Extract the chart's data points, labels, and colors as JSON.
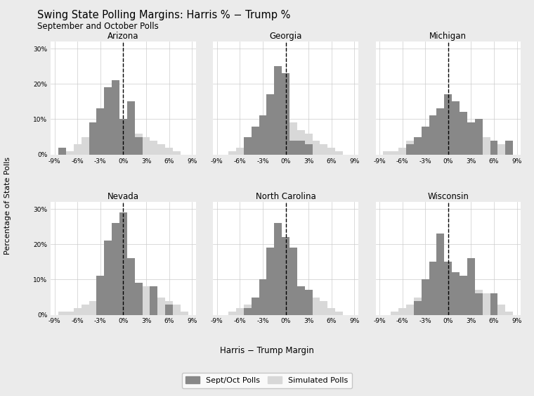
{
  "title": "Swing State Polling Margins: Harris % − Trump %",
  "subtitle": "September and October Polls",
  "xlabel": "Harris − Trump Margin",
  "ylabel": "Percentage of State Polls",
  "background_color": "#ebebeb",
  "plot_bg_color": "#ffffff",
  "dark_color": "#888888",
  "light_color": "#d8d8d8",
  "states": [
    "Arizona",
    "Georgia",
    "Michigan",
    "Nevada",
    "North Carolina",
    "Wisconsin"
  ],
  "bin_centers": [
    -8,
    -7,
    -6,
    -5,
    -4,
    -3,
    -2,
    -1,
    0,
    1,
    2,
    3,
    4,
    5,
    6,
    7,
    8
  ],
  "tick_labels": [
    "-9%",
    "-6%",
    "-3%",
    "0%",
    "3%",
    "6%",
    "9%"
  ],
  "tick_positions": [
    -9,
    -6,
    -3,
    0,
    3,
    6,
    9
  ],
  "ylim": [
    0,
    0.32
  ],
  "yticks": [
    0.0,
    0.1,
    0.2,
    0.3
  ],
  "ytick_labels": [
    "0%",
    "10%",
    "20%",
    "30%"
  ],
  "data": {
    "Arizona": {
      "dark": [
        0.02,
        0.0,
        0.0,
        0.0,
        0.09,
        0.13,
        0.19,
        0.21,
        0.1,
        0.15,
        0.05,
        0.0,
        0.0,
        0.0,
        0.0,
        0.0,
        0.0
      ],
      "light": [
        0.01,
        0.01,
        0.03,
        0.05,
        0.07,
        0.09,
        0.1,
        0.1,
        0.09,
        0.08,
        0.06,
        0.05,
        0.04,
        0.03,
        0.02,
        0.01,
        0.0
      ]
    },
    "Georgia": {
      "dark": [
        0.0,
        0.0,
        0.0,
        0.05,
        0.08,
        0.11,
        0.17,
        0.25,
        0.23,
        0.04,
        0.04,
        0.03,
        0.0,
        0.0,
        0.0,
        0.0,
        0.0
      ],
      "light": [
        0.0,
        0.01,
        0.02,
        0.04,
        0.06,
        0.08,
        0.09,
        0.1,
        0.1,
        0.09,
        0.07,
        0.06,
        0.04,
        0.03,
        0.02,
        0.01,
        0.0
      ]
    },
    "Michigan": {
      "dark": [
        0.0,
        0.0,
        0.0,
        0.03,
        0.05,
        0.08,
        0.11,
        0.13,
        0.17,
        0.15,
        0.12,
        0.09,
        0.1,
        0.0,
        0.04,
        0.0,
        0.04
      ],
      "light": [
        0.01,
        0.01,
        0.02,
        0.04,
        0.05,
        0.07,
        0.09,
        0.1,
        0.1,
        0.1,
        0.09,
        0.08,
        0.07,
        0.05,
        0.04,
        0.03,
        0.01
      ]
    },
    "Nevada": {
      "dark": [
        0.0,
        0.0,
        0.0,
        0.0,
        0.0,
        0.11,
        0.21,
        0.26,
        0.29,
        0.16,
        0.09,
        0.0,
        0.08,
        0.0,
        0.03,
        0.0,
        0.0
      ],
      "light": [
        0.01,
        0.01,
        0.02,
        0.03,
        0.04,
        0.06,
        0.08,
        0.09,
        0.1,
        0.1,
        0.09,
        0.08,
        0.07,
        0.05,
        0.04,
        0.03,
        0.01
      ]
    },
    "North Carolina": {
      "dark": [
        0.0,
        0.0,
        0.0,
        0.02,
        0.05,
        0.1,
        0.19,
        0.26,
        0.22,
        0.19,
        0.08,
        0.07,
        0.0,
        0.0,
        0.0,
        0.0,
        0.0
      ],
      "light": [
        0.0,
        0.01,
        0.02,
        0.03,
        0.05,
        0.07,
        0.09,
        0.1,
        0.1,
        0.09,
        0.08,
        0.06,
        0.05,
        0.04,
        0.02,
        0.01,
        0.0
      ]
    },
    "Wisconsin": {
      "dark": [
        0.0,
        0.0,
        0.0,
        0.0,
        0.04,
        0.1,
        0.15,
        0.23,
        0.15,
        0.12,
        0.11,
        0.16,
        0.06,
        0.0,
        0.06,
        0.0,
        0.0
      ],
      "light": [
        0.0,
        0.01,
        0.02,
        0.03,
        0.05,
        0.07,
        0.09,
        0.1,
        0.1,
        0.1,
        0.09,
        0.08,
        0.07,
        0.06,
        0.04,
        0.03,
        0.01
      ]
    }
  }
}
